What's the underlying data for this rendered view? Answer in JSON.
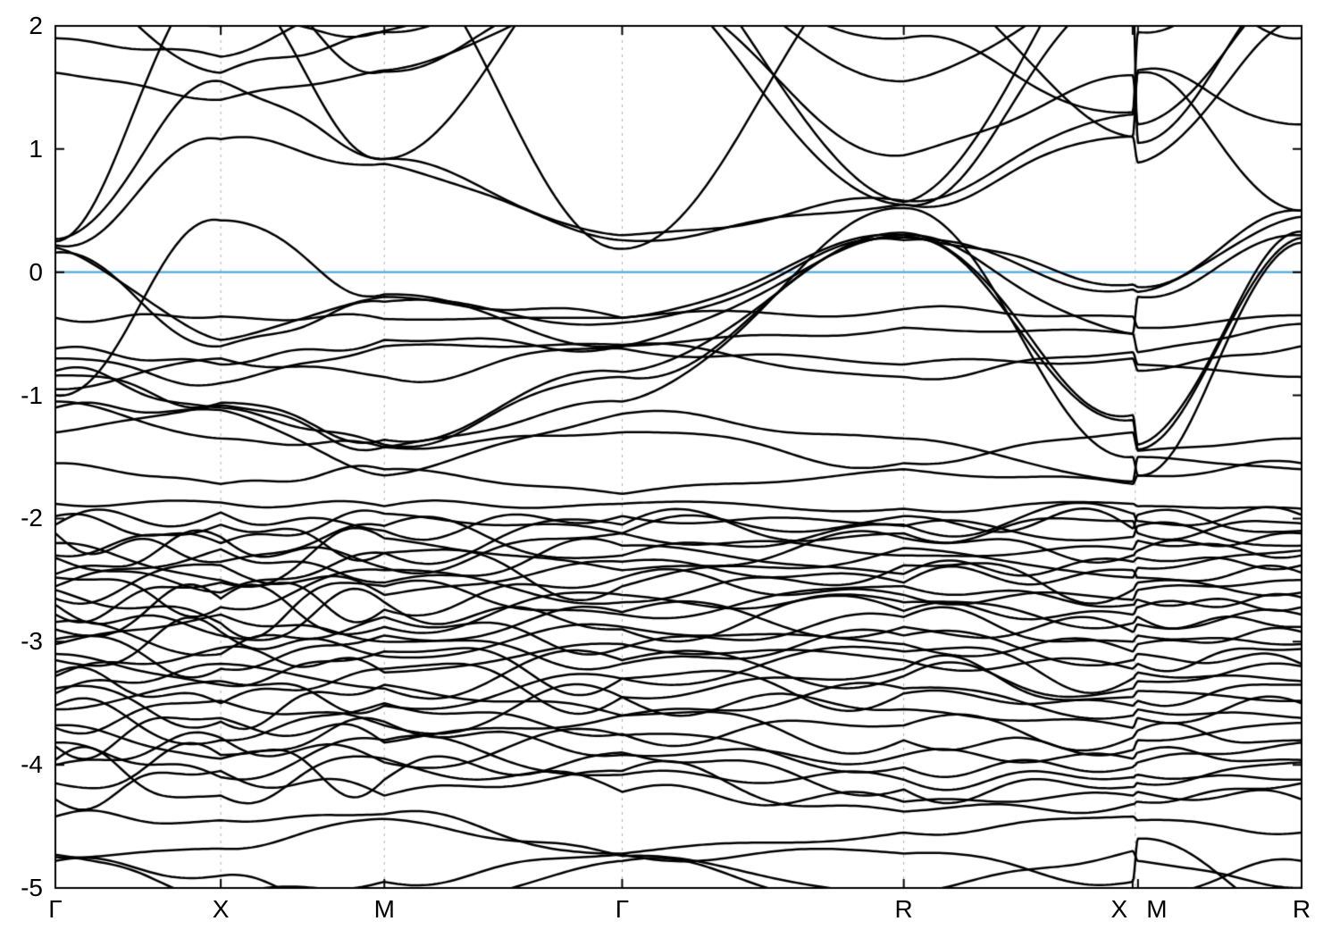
{
  "figure": {
    "kind": "electronic-band-structure",
    "background": "#ffffff"
  },
  "chart_data": {
    "type": "line",
    "title": "",
    "xlabel": "",
    "ylabel": "",
    "ylim": [
      -5,
      2
    ],
    "grid": "vertical-dashed-at-kpoints",
    "legend": "none",
    "yticks": [
      {
        "label": "2",
        "value": 2
      },
      {
        "label": "1",
        "value": 1
      },
      {
        "label": "0",
        "value": 0
      },
      {
        "label": "-1",
        "value": -1
      },
      {
        "label": "-2",
        "value": -2
      },
      {
        "label": "-3",
        "value": -3
      },
      {
        "label": "-4",
        "value": -4
      },
      {
        "label": "-5",
        "value": -5
      }
    ],
    "kpath": {
      "node_u": [
        0,
        185,
        368,
        634,
        949,
        1205,
        1211,
        1394
      ],
      "node_labels": [
        "Γ",
        "X",
        "M",
        "Γ",
        "R",
        "X",
        "M",
        "R"
      ],
      "label_u": [
        0,
        185,
        368,
        634,
        949,
        1190,
        1232,
        1394
      ],
      "grid_u": [
        185,
        368,
        634,
        949,
        1208
      ],
      "panel_break_u": 1208
    },
    "fermi_level": 0,
    "colors": {
      "band": "#000000",
      "fermi_line": "#4fa8dc",
      "grid_line": "#b0b0b0",
      "axis": "#000000"
    },
    "series": [
      {
        "name": "cond-01",
        "values": [
          0.22,
          1.08,
          0.88,
          0.26,
          0.55,
          1.1,
          0.89,
          2.05
        ]
      },
      {
        "name": "cond-02",
        "values": [
          0.27,
          1.55,
          0.92,
          0.3,
          0.58,
          1.28,
          1.62,
          0.5
        ]
      },
      {
        "name": "cond-03",
        "values": [
          0.25,
          2.5,
          1.63,
          2.4,
          0.55,
          2.3,
          1.05,
          2.4
        ]
      },
      {
        "name": "cond-04",
        "values": [
          2.8,
          2.5,
          2.6,
          0.19,
          2.7,
          2.6,
          2.8,
          2.9
        ]
      },
      {
        "name": "cond-05",
        "values": [
          2.9,
          2.4,
          0.92,
          2.8,
          2.9,
          2.5,
          2.95,
          3.0
        ]
      },
      {
        "name": "cond-06",
        "values": [
          3.0,
          2.7,
          2.9,
          2.9,
          0.57,
          2.8,
          3.0,
          3.1
        ]
      },
      {
        "name": "cond-07",
        "values": [
          2.4,
          1.62,
          1.95,
          2.6,
          1.9,
          1.3,
          1.95,
          2.6
        ]
      },
      {
        "name": "cond-08",
        "values": [
          1.62,
          1.4,
          1.64,
          2.3,
          2.5,
          1.1,
          1.64,
          1.2
        ]
      },
      {
        "name": "cond-09",
        "values": [
          1.9,
          1.75,
          2.3,
          2.7,
          1.55,
          2.4,
          2.6,
          1.9
        ]
      },
      {
        "name": "cond-10",
        "values": [
          2.2,
          2.0,
          1.96,
          2.4,
          0.95,
          1.6,
          1.2,
          2.3
        ]
      },
      {
        "name": "val-01",
        "values": [
          0.2,
          -0.55,
          -0.2,
          -0.37,
          0.3,
          -0.1,
          -0.12,
          0.5
        ]
      },
      {
        "name": "val-02",
        "values": [
          0.16,
          -0.6,
          -0.24,
          -0.41,
          0.26,
          -0.14,
          -0.16,
          0.45
        ]
      },
      {
        "name": "val-03",
        "values": [
          -0.37,
          -0.36,
          -0.38,
          -0.37,
          -0.3,
          -0.36,
          -0.45,
          -0.35
        ]
      },
      {
        "name": "val-04",
        "values": [
          -0.62,
          -0.75,
          -0.55,
          -0.6,
          -0.45,
          -0.5,
          -0.65,
          -0.42
        ]
      },
      {
        "name": "val-05",
        "values": [
          -0.8,
          -1.1,
          -1.4,
          -0.85,
          0.28,
          -1.2,
          -1.44,
          0.28
        ]
      },
      {
        "name": "val-06",
        "values": [
          -0.84,
          -1.06,
          -1.36,
          -0.81,
          0.32,
          -1.16,
          -1.4,
          0.33
        ]
      },
      {
        "name": "val-07",
        "values": [
          -1.05,
          -1.35,
          -1.42,
          -1.05,
          0.52,
          -1.5,
          -1.65,
          0.24
        ]
      },
      {
        "name": "val-08",
        "values": [
          -0.95,
          -0.7,
          -0.85,
          -0.62,
          -0.75,
          -0.7,
          -0.8,
          -0.6
        ]
      },
      {
        "name": "val-09",
        "values": [
          -0.7,
          -0.9,
          -0.6,
          -0.59,
          -0.85,
          -0.65,
          -0.75,
          -0.85
        ]
      },
      {
        "name": "val-10",
        "values": [
          -1.1,
          -1.12,
          -1.65,
          -1.15,
          -1.35,
          -1.7,
          -1.5,
          -1.6
        ]
      },
      {
        "name": "val-11",
        "values": [
          -1.3,
          -1.08,
          -1.42,
          -1.3,
          -1.55,
          -1.3,
          -1.45,
          -1.35
        ]
      },
      {
        "name": "val-12",
        "values": [
          -1.88,
          -1.87,
          -1.9,
          -1.88,
          -1.92,
          -1.88,
          -1.9,
          -1.92
        ]
      },
      {
        "name": "val-13",
        "values": [
          -1.55,
          -1.72,
          -1.6,
          -1.8,
          -1.6,
          -1.72,
          -1.65,
          -1.55
        ]
      },
      {
        "name": "val-14",
        "values": [
          -1.0,
          0.42,
          -0.18,
          -0.6,
          0.3,
          -0.5,
          -0.2,
          0.3
        ]
      },
      {
        "name": "dense-01",
        "values": [
          -2.05,
          -1.95,
          -2.1,
          -1.98,
          -2.05,
          -1.96,
          -2.02,
          -1.97
        ]
      },
      {
        "name": "dense-02",
        "values": [
          -1.98,
          -2.2,
          -1.96,
          -2.12,
          -1.98,
          -2.08,
          -1.97,
          -2.1
        ]
      },
      {
        "name": "dense-03",
        "values": [
          -2.3,
          -2.05,
          -2.28,
          -2.05,
          -2.12,
          -2.02,
          -2.12,
          -2.04
        ]
      },
      {
        "name": "dense-04",
        "values": [
          -2.12,
          -2.35,
          -2.06,
          -2.3,
          -2.06,
          -2.15,
          -2.06,
          -2.22
        ]
      },
      {
        "name": "dense-05",
        "values": [
          -2.45,
          -2.15,
          -2.4,
          -2.12,
          -2.3,
          -2.25,
          -2.18,
          -2.3
        ]
      },
      {
        "name": "dense-06",
        "values": [
          -2.2,
          -2.5,
          -2.16,
          -2.42,
          -2.16,
          -2.3,
          -2.26,
          -2.12
        ]
      },
      {
        "name": "dense-07",
        "values": [
          -2.55,
          -2.25,
          -2.52,
          -2.22,
          -2.45,
          -2.35,
          -2.32,
          -2.38
        ]
      },
      {
        "name": "dense-08",
        "values": [
          -2.32,
          -2.6,
          -2.28,
          -2.55,
          -2.24,
          -2.48,
          -2.4,
          -2.26
        ]
      },
      {
        "name": "dense-09",
        "values": [
          -2.65,
          -2.38,
          -2.62,
          -2.35,
          -2.52,
          -2.42,
          -2.48,
          -2.44
        ]
      },
      {
        "name": "dense-10",
        "values": [
          -2.48,
          -2.72,
          -2.42,
          -2.68,
          -2.38,
          -2.58,
          -2.52,
          -2.6
        ]
      },
      {
        "name": "dense-11",
        "values": [
          -2.78,
          -2.52,
          -2.74,
          -2.48,
          -2.62,
          -2.66,
          -2.58,
          -2.5
        ]
      },
      {
        "name": "dense-12",
        "values": [
          -2.58,
          -2.85,
          -2.55,
          -2.78,
          -2.55,
          -2.7,
          -2.66,
          -2.72
        ]
      },
      {
        "name": "dense-13",
        "values": [
          -2.9,
          -2.65,
          -2.88,
          -2.62,
          -2.75,
          -2.78,
          -2.72,
          -2.64
        ]
      },
      {
        "name": "dense-14",
        "values": [
          -2.7,
          -2.95,
          -2.68,
          -2.9,
          -2.68,
          -2.85,
          -2.8,
          -2.88
        ]
      },
      {
        "name": "dense-15",
        "values": [
          -3.02,
          -2.78,
          -3.0,
          -2.76,
          -2.88,
          -2.92,
          -2.86,
          -2.78
        ]
      },
      {
        "name": "dense-16",
        "values": [
          -2.84,
          -3.1,
          -2.8,
          -3.05,
          -2.8,
          -3.0,
          -2.95,
          -3.02
        ]
      },
      {
        "name": "dense-17",
        "values": [
          -3.15,
          -2.92,
          -3.12,
          -2.88,
          -3.02,
          -3.08,
          -3.02,
          -2.92
        ]
      },
      {
        "name": "dense-18",
        "values": [
          -2.98,
          -3.22,
          -2.95,
          -3.18,
          -2.95,
          -3.15,
          -3.1,
          -3.18
        ]
      },
      {
        "name": "dense-19",
        "values": [
          -3.28,
          -3.05,
          -3.25,
          -3.02,
          -3.15,
          -3.22,
          -3.18,
          -3.06
        ]
      },
      {
        "name": "dense-20",
        "values": [
          -3.1,
          -3.35,
          -3.08,
          -3.3,
          -3.08,
          -3.3,
          -3.25,
          -3.32
        ]
      },
      {
        "name": "dense-21",
        "values": [
          -3.42,
          -3.18,
          -3.38,
          -3.15,
          -3.28,
          -3.38,
          -3.32,
          -3.2
        ]
      },
      {
        "name": "dense-22",
        "values": [
          -3.25,
          -3.5,
          -3.22,
          -3.45,
          -3.22,
          -3.45,
          -3.4,
          -3.48
        ]
      },
      {
        "name": "dense-23",
        "values": [
          -3.55,
          -3.32,
          -3.52,
          -3.3,
          -3.42,
          -3.52,
          -3.48,
          -3.35
        ]
      },
      {
        "name": "dense-24",
        "values": [
          -3.38,
          -3.65,
          -3.35,
          -3.6,
          -3.38,
          -3.6,
          -3.55,
          -3.62
        ]
      },
      {
        "name": "dense-25",
        "values": [
          -3.7,
          -3.48,
          -3.68,
          -3.45,
          -3.55,
          -3.7,
          -3.62,
          -3.5
        ]
      },
      {
        "name": "dense-26",
        "values": [
          -3.52,
          -3.8,
          -3.5,
          -3.75,
          -3.68,
          -3.78,
          -3.72,
          -3.8
        ]
      },
      {
        "name": "dense-27",
        "values": [
          -3.85,
          -3.62,
          -3.82,
          -3.6,
          -3.8,
          -3.88,
          -3.8,
          -3.66
        ]
      },
      {
        "name": "dense-28",
        "values": [
          -3.68,
          -3.95,
          -3.65,
          -3.92,
          -3.92,
          -3.95,
          -3.9,
          -3.96
        ]
      },
      {
        "name": "dense-29",
        "values": [
          -4.0,
          -3.78,
          -3.98,
          -3.76,
          -4.02,
          -4.02,
          -3.98,
          -3.82
        ]
      },
      {
        "name": "dense-30",
        "values": [
          -3.82,
          -4.1,
          -3.8,
          -4.08,
          -4.12,
          -4.1,
          -4.08,
          -4.12
        ]
      },
      {
        "name": "dense-31",
        "values": [
          -4.15,
          -3.92,
          -4.12,
          -3.9,
          -4.2,
          -4.18,
          -4.15,
          -3.98
        ]
      },
      {
        "name": "dense-32",
        "values": [
          -3.96,
          -4.25,
          -3.95,
          -4.22,
          -4.3,
          -4.25,
          -4.22,
          -4.28
        ]
      },
      {
        "name": "dense-33",
        "values": [
          -4.28,
          -4.05,
          -4.25,
          -4.05,
          -4.38,
          -4.32,
          -4.3,
          -4.15
        ]
      },
      {
        "name": "low-01",
        "values": [
          -4.42,
          -4.45,
          -4.4,
          -4.72,
          -4.55,
          -4.42,
          -4.45,
          -4.55
        ]
      },
      {
        "name": "low-02",
        "values": [
          -4.75,
          -4.68,
          -4.44,
          -4.74,
          -5.05,
          -4.7,
          -4.78,
          -5.0
        ]
      },
      {
        "name": "low-03",
        "values": [
          -4.73,
          -5.05,
          -4.95,
          -4.73,
          -4.72,
          -4.95,
          -4.6,
          -5.2
        ]
      },
      {
        "name": "low-04",
        "values": [
          -4.78,
          -4.9,
          -5.25,
          -4.78,
          -5.15,
          -5.1,
          -5.05,
          -4.78
        ]
      }
    ]
  }
}
